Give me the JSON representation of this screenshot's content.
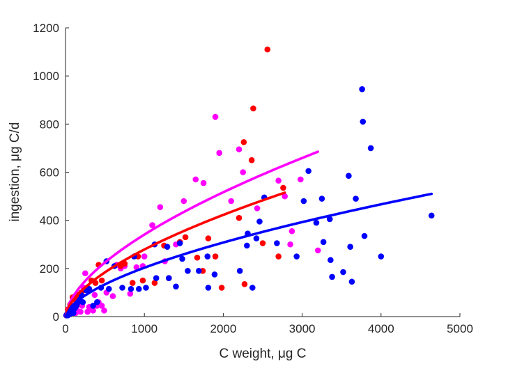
{
  "chart_data": {
    "type": "scatter",
    "title": "",
    "xlabel": "C weight, μg C",
    "ylabel": "ingestion, μg C/d",
    "xlim": [
      0,
      5000
    ],
    "ylim": [
      0,
      1200
    ],
    "xticks": [
      0,
      1000,
      2000,
      3000,
      4000,
      5000
    ],
    "yticks": [
      0,
      200,
      400,
      600,
      800,
      1000,
      1200
    ],
    "xtick_labels": [
      "0",
      "1000",
      "2000",
      "3000",
      "4000",
      "5000"
    ],
    "ytick_labels": [
      "0",
      "200",
      "400",
      "600",
      "800",
      "1000",
      "1200"
    ],
    "grid": false,
    "legend": "none",
    "series": [
      {
        "color": "#ff00ff",
        "points": [
          [
            10,
            5
          ],
          [
            30,
            10
          ],
          [
            50,
            20
          ],
          [
            80,
            30
          ],
          [
            100,
            40
          ],
          [
            130,
            15
          ],
          [
            150,
            25
          ],
          [
            170,
            60
          ],
          [
            190,
            20
          ],
          [
            210,
            45
          ],
          [
            230,
            120
          ],
          [
            250,
            180
          ],
          [
            280,
            20
          ],
          [
            300,
            40
          ],
          [
            330,
            35
          ],
          [
            350,
            25
          ],
          [
            370,
            90
          ],
          [
            400,
            45
          ],
          [
            420,
            60
          ],
          [
            460,
            45
          ],
          [
            490,
            25
          ],
          [
            520,
            100
          ],
          [
            600,
            85
          ],
          [
            650,
            215
          ],
          [
            700,
            200
          ],
          [
            750,
            210
          ],
          [
            820,
            95
          ],
          [
            900,
            205
          ],
          [
            980,
            210
          ],
          [
            1000,
            250
          ],
          [
            1100,
            380
          ],
          [
            1200,
            455
          ],
          [
            1260,
            230
          ],
          [
            1400,
            300
          ],
          [
            1500,
            480
          ],
          [
            1650,
            570
          ],
          [
            1750,
            555
          ],
          [
            1900,
            830
          ],
          [
            1950,
            680
          ],
          [
            2100,
            480
          ],
          [
            2200,
            695
          ],
          [
            2250,
            600
          ],
          [
            2430,
            450
          ],
          [
            2700,
            565
          ],
          [
            2780,
            500
          ],
          [
            2850,
            300
          ],
          [
            2870,
            355
          ],
          [
            2980,
            570
          ],
          [
            3200,
            275
          ]
        ],
        "fit": {
          "x_start": 0,
          "x_end": 3200,
          "y_end": 685
        }
      },
      {
        "color": "#ff0000",
        "points": [
          [
            30,
            30
          ],
          [
            60,
            50
          ],
          [
            90,
            80
          ],
          [
            120,
            70
          ],
          [
            160,
            90
          ],
          [
            200,
            100
          ],
          [
            240,
            110
          ],
          [
            280,
            120
          ],
          [
            330,
            150
          ],
          [
            380,
            140
          ],
          [
            420,
            215
          ],
          [
            460,
            150
          ],
          [
            700,
            210
          ],
          [
            750,
            220
          ],
          [
            850,
            140
          ],
          [
            920,
            250
          ],
          [
            980,
            150
          ],
          [
            1130,
            140
          ],
          [
            1250,
            295
          ],
          [
            1310,
            160
          ],
          [
            1450,
            310
          ],
          [
            1520,
            330
          ],
          [
            1670,
            245
          ],
          [
            1740,
            190
          ],
          [
            1810,
            325
          ],
          [
            1900,
            250
          ],
          [
            1980,
            120
          ],
          [
            2200,
            410
          ],
          [
            2260,
            725
          ],
          [
            2270,
            135
          ],
          [
            2360,
            650
          ],
          [
            2380,
            865
          ],
          [
            2500,
            305
          ],
          [
            2560,
            1110
          ],
          [
            2700,
            250
          ],
          [
            2760,
            535
          ]
        ],
        "fit": {
          "x_start": 0,
          "x_end": 2780,
          "y_end": 515
        }
      },
      {
        "color": "#0000ff",
        "points": [
          [
            10,
            5
          ],
          [
            20,
            10
          ],
          [
            30,
            5
          ],
          [
            40,
            15
          ],
          [
            50,
            10
          ],
          [
            60,
            20
          ],
          [
            70,
            15
          ],
          [
            80,
            25
          ],
          [
            100,
            15
          ],
          [
            120,
            35
          ],
          [
            140,
            45
          ],
          [
            160,
            60
          ],
          [
            180,
            70
          ],
          [
            200,
            90
          ],
          [
            220,
            60
          ],
          [
            260,
            110
          ],
          [
            300,
            115
          ],
          [
            350,
            45
          ],
          [
            400,
            60
          ],
          [
            450,
            120
          ],
          [
            520,
            230
          ],
          [
            550,
            115
          ],
          [
            620,
            210
          ],
          [
            720,
            120
          ],
          [
            830,
            115
          ],
          [
            870,
            250
          ],
          [
            930,
            115
          ],
          [
            1020,
            120
          ],
          [
            1130,
            300
          ],
          [
            1150,
            160
          ],
          [
            1290,
            290
          ],
          [
            1310,
            160
          ],
          [
            1400,
            125
          ],
          [
            1450,
            305
          ],
          [
            1480,
            240
          ],
          [
            1550,
            190
          ],
          [
            1690,
            190
          ],
          [
            1800,
            250
          ],
          [
            1810,
            120
          ],
          [
            1890,
            175
          ],
          [
            2210,
            190
          ],
          [
            2300,
            295
          ],
          [
            2310,
            345
          ],
          [
            2370,
            120
          ],
          [
            2420,
            325
          ],
          [
            2460,
            395
          ],
          [
            2520,
            495
          ],
          [
            2680,
            305
          ],
          [
            2930,
            250
          ],
          [
            3020,
            480
          ],
          [
            3080,
            605
          ],
          [
            3180,
            390
          ],
          [
            3250,
            490
          ],
          [
            3270,
            310
          ],
          [
            3350,
            405
          ],
          [
            3360,
            235
          ],
          [
            3380,
            165
          ],
          [
            3520,
            185
          ],
          [
            3590,
            585
          ],
          [
            3610,
            290
          ],
          [
            3630,
            145
          ],
          [
            3680,
            490
          ],
          [
            3760,
            945
          ],
          [
            3770,
            810
          ],
          [
            3790,
            335
          ],
          [
            3870,
            700
          ],
          [
            4000,
            250
          ],
          [
            4640,
            420
          ]
        ],
        "fit": {
          "x_start": 0,
          "x_end": 4640,
          "y_end": 510
        }
      }
    ]
  }
}
